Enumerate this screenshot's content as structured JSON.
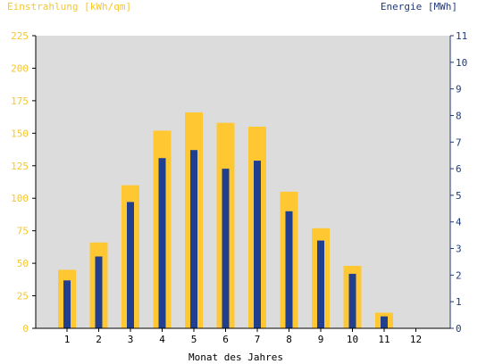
{
  "chart_data": {
    "type": "bar",
    "xlabel": "Monat des Jahres",
    "ylabel_left": "Einstrahlung [kWh/qm]",
    "ylabel_right": "Energie [MWh]",
    "categories": [
      "1",
      "2",
      "3",
      "4",
      "5",
      "6",
      "7",
      "8",
      "9",
      "10",
      "11",
      "12"
    ],
    "ylim_left": [
      0,
      225
    ],
    "ylim_right": [
      0,
      11
    ],
    "yticks_left": [
      "0",
      "25",
      "50",
      "75",
      "100",
      "125",
      "150",
      "175",
      "200",
      "225"
    ],
    "yticks_right": [
      "0",
      "1",
      "2",
      "3",
      "4",
      "5",
      "6",
      "7",
      "8",
      "9",
      "10",
      "11"
    ],
    "grid": false,
    "background": "#dcdcdc",
    "series": [
      {
        "name": "Einstrahlung [kWh/qm]",
        "axis": "left",
        "color": "#ffc832",
        "values": [
          45,
          66,
          110,
          152,
          166,
          158,
          155,
          105,
          77,
          48,
          12,
          0
        ]
      },
      {
        "name": "Energie [MWh]",
        "axis": "right",
        "color": "#213f8f",
        "values": [
          1.8,
          2.7,
          4.75,
          6.4,
          6.7,
          6.0,
          6.3,
          4.4,
          3.3,
          2.05,
          0.45,
          0
        ]
      }
    ]
  }
}
